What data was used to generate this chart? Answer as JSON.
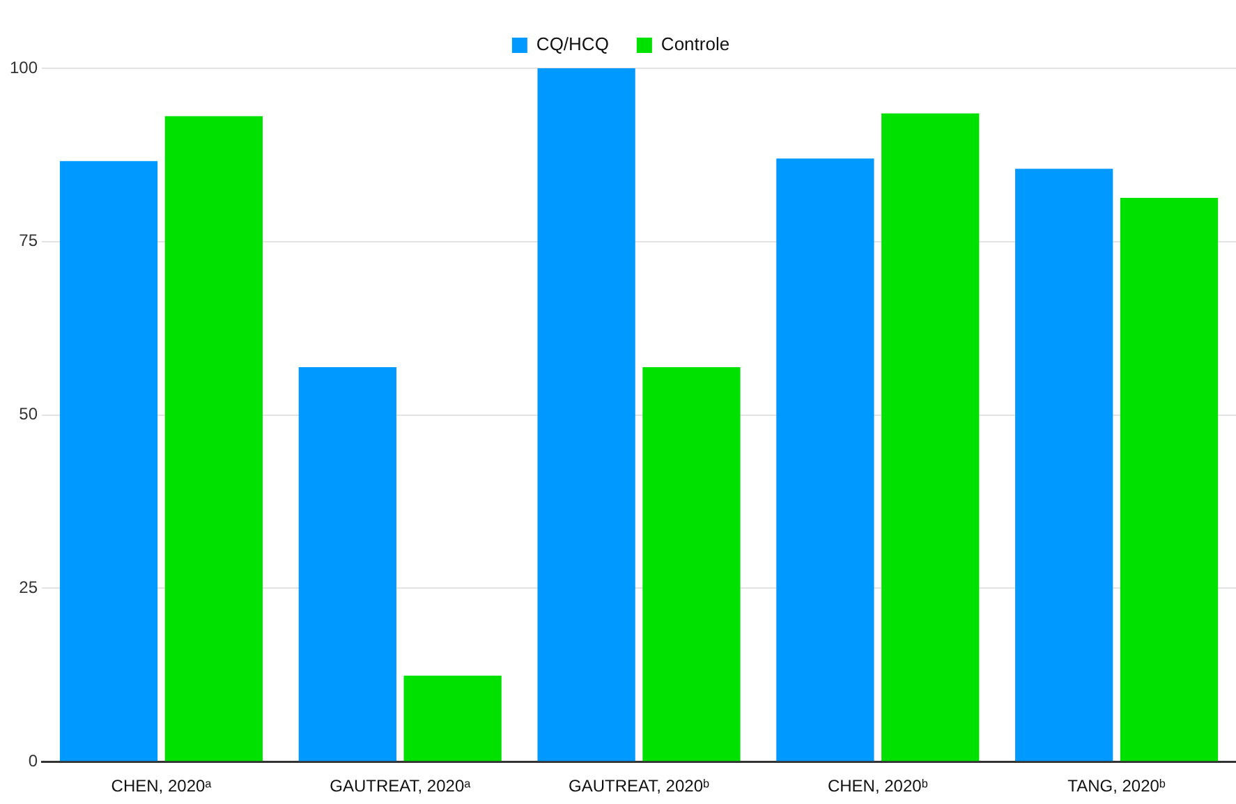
{
  "chart_data": {
    "type": "bar",
    "categories": [
      "CHEN, 2020ᵃ",
      "GAUTREAT, 2020ᵃ",
      "GAUTREAT, 2020ᵇ",
      "CHEN, 2020ᵇ",
      "TANG, 2020ᵇ"
    ],
    "series": [
      {
        "name": "CQ/HCQ",
        "color": "#0099ff",
        "values": [
          86.6,
          56.9,
          100,
          87.0,
          85.5
        ]
      },
      {
        "name": "Controle",
        "color": "#00e100",
        "values": [
          93.1,
          12.4,
          56.9,
          93.5,
          81.3
        ]
      }
    ],
    "ylim": [
      0,
      100
    ],
    "yticks": [
      0,
      25,
      50,
      75,
      100
    ],
    "grid": "y",
    "legend": "top"
  }
}
